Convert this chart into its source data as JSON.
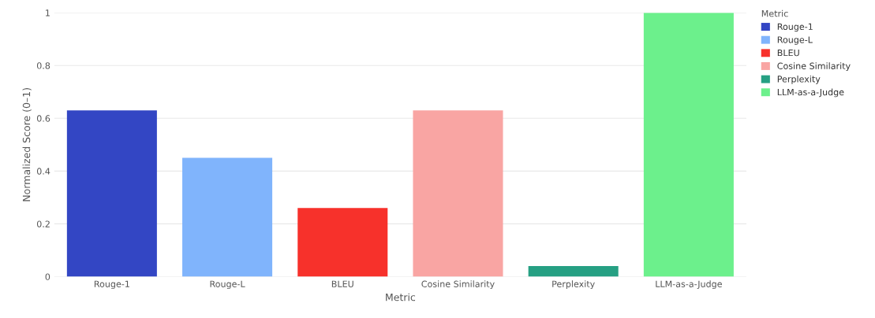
{
  "chart_data": {
    "type": "bar",
    "xlabel": "Metric",
    "ylabel": "Normalized Score (0–1)",
    "legend_title": "Metric",
    "categories": [
      "Rouge-1",
      "Rouge-L",
      "BLEU",
      "Cosine Similarity",
      "Perplexity",
      "LLM-as-a-Judge"
    ],
    "series": [
      {
        "name": "Rouge-1",
        "color": "#3346c4",
        "values": [
          0.63,
          null,
          null,
          null,
          null,
          null
        ]
      },
      {
        "name": "Rouge-L",
        "color": "#80b4fc",
        "values": [
          null,
          0.45,
          null,
          null,
          null,
          null
        ]
      },
      {
        "name": "BLEU",
        "color": "#f7312b",
        "values": [
          null,
          null,
          0.26,
          null,
          null,
          null
        ]
      },
      {
        "name": "Cosine Similarity",
        "color": "#f9a5a3",
        "values": [
          null,
          null,
          null,
          0.63,
          null,
          null
        ]
      },
      {
        "name": "Perplexity",
        "color": "#26a083",
        "values": [
          null,
          null,
          null,
          null,
          0.04,
          null
        ]
      },
      {
        "name": "LLM-as-a-Judge",
        "color": "#6cf08c",
        "values": [
          null,
          null,
          null,
          null,
          null,
          1.0
        ]
      }
    ],
    "ylim": [
      0,
      1
    ],
    "yticks": [
      0,
      0.2,
      0.4,
      0.6,
      0.8,
      1
    ],
    "grid": "y",
    "legend": "top right"
  }
}
